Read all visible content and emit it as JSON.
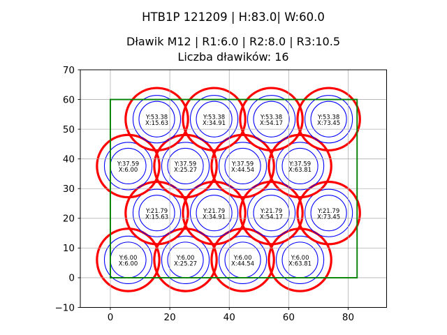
{
  "chart_data": {
    "type": "scatter",
    "title": "HTB1P 121209 | H:83.0| W:60.0",
    "subtitle": "Dławik M12 | R1:6.0 | R2:8.0 | R3:10.5",
    "count_label": "Liczba dławików: 16",
    "xlim": [
      -10.1,
      92.93
    ],
    "ylim": [
      -10,
      70
    ],
    "x_ticks": [
      0,
      20,
      40,
      60,
      80
    ],
    "y_ticks": [
      -10,
      0,
      10,
      20,
      30,
      40,
      50,
      60,
      70
    ],
    "grid": true,
    "legend": "none",
    "aspect": "equal",
    "colors": {
      "outer_ring": "#ff0000",
      "inner_rings": "#0000ff",
      "enclosure": "#008000",
      "grid": "#b0b0b0",
      "axes": "#000000",
      "label_text": "#000000",
      "background": "#ffffff"
    },
    "enclosure": {
      "x": 0.0,
      "y": 0.0,
      "width": 83.0,
      "height": 60.0
    },
    "gland_spec": {
      "name": "M12",
      "r1": 6.0,
      "r2": 8.0,
      "r3": 10.5,
      "count": 16
    },
    "glands": [
      {
        "x": 6.0,
        "y": 6.0,
        "label_line1": "Y:6.00",
        "label_line2": "X:6.00"
      },
      {
        "x": 25.27,
        "y": 6.0,
        "label_line1": "Y:6.00",
        "label_line2": "X:25.27"
      },
      {
        "x": 44.54,
        "y": 6.0,
        "label_line1": "Y:6.00",
        "label_line2": "X:44.54"
      },
      {
        "x": 63.81,
        "y": 6.0,
        "label_line1": "Y:6.00",
        "label_line2": "X:63.81"
      },
      {
        "x": 15.63,
        "y": 21.79,
        "label_line1": "Y:21.79",
        "label_line2": "X:15.63"
      },
      {
        "x": 34.91,
        "y": 21.79,
        "label_line1": "Y:21.79",
        "label_line2": "X:34.91"
      },
      {
        "x": 54.17,
        "y": 21.79,
        "label_line1": "Y:21.79",
        "label_line2": "X:54.17"
      },
      {
        "x": 73.45,
        "y": 21.79,
        "label_line1": "Y:21.79",
        "label_line2": "X:73.45"
      },
      {
        "x": 6.0,
        "y": 37.59,
        "label_line1": "Y:37.59",
        "label_line2": "X:6.00"
      },
      {
        "x": 25.27,
        "y": 37.59,
        "label_line1": "Y:37.59",
        "label_line2": "X:25.27"
      },
      {
        "x": 44.54,
        "y": 37.59,
        "label_line1": "Y:37.59",
        "label_line2": "X:44.54"
      },
      {
        "x": 63.81,
        "y": 37.59,
        "label_line1": "Y:37.59",
        "label_line2": "X:63.81"
      },
      {
        "x": 15.63,
        "y": 53.38,
        "label_line1": "Y:53.38",
        "label_line2": "X:15.63"
      },
      {
        "x": 34.91,
        "y": 53.38,
        "label_line1": "Y:53.38",
        "label_line2": "X:34.91"
      },
      {
        "x": 54.17,
        "y": 53.38,
        "label_line1": "Y:53.38",
        "label_line2": "X:54.17"
      },
      {
        "x": 73.45,
        "y": 53.38,
        "label_line1": "Y:53.38",
        "label_line2": "X:73.45"
      }
    ]
  }
}
